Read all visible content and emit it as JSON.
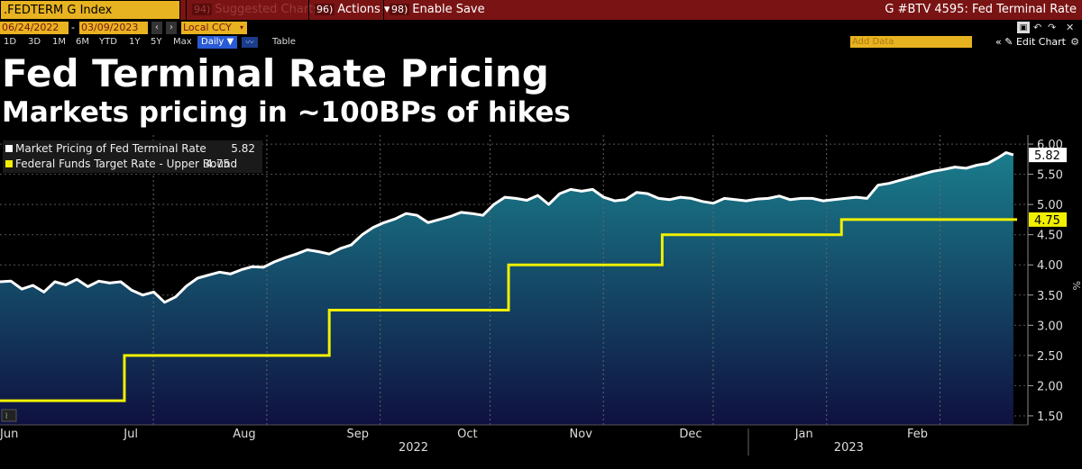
{
  "toolbar": {
    "ticker": ".FEDTERM G Index",
    "suggested_num": "94)",
    "suggested_label": "Suggested Charts",
    "actions_num": "96)",
    "actions_label": "Actions ▾",
    "enable_num": "98)",
    "enable_label": "Enable Save",
    "window_title": "G #BTV 4595: Fed Terminal Rate"
  },
  "dates": {
    "start": "06/24/2022",
    "dash": "-",
    "end": "03/09/2023",
    "currency": "Local CCY"
  },
  "periods": [
    "1D",
    "3D",
    "1M",
    "6M",
    "YTD",
    "1Y",
    "5Y",
    "Max"
  ],
  "frequency": "Daily ▼",
  "table_label": "Table",
  "add_data_placeholder": "Add Data",
  "edit_chart": "« ✎ Edit Chart",
  "headline": "Fed Terminal Rate Pricing",
  "subheadline": "Markets pricing in ~100BPs of hikes",
  "colors": {
    "white_series": "#ffffff",
    "yellow_series": "#f0f000",
    "fill_top": "#1a7d8c",
    "fill_bottom": "#0f1140",
    "accent": "#e8b320"
  },
  "legend": [
    {
      "label": "Market Pricing of Fed Terminal Rate",
      "value": "5.82"
    },
    {
      "label": "Federal Funds Target Rate - Upper Bound",
      "value": "4.75"
    }
  ],
  "chart_data": {
    "type": "line",
    "title": "Fed Terminal Rate Pricing",
    "ylabel": "%",
    "ylim": [
      1.35,
      6.15
    ],
    "yticks": [
      "6.00",
      "5.50",
      "5.00",
      "4.50",
      "4.00",
      "3.50",
      "3.00",
      "2.50",
      "2.00",
      "1.50"
    ],
    "ytick_values": [
      6.0,
      5.5,
      5.0,
      4.5,
      4.0,
      3.5,
      3.0,
      2.5,
      2.0,
      1.5
    ],
    "x_start": "2022-06-24",
    "x_end": "2023-03-09",
    "month_labels": [
      "Jun",
      "Jul",
      "Aug",
      "Sep",
      "Oct",
      "Nov",
      "Dec",
      "Jan",
      "Feb"
    ],
    "month_days": [
      0,
      37,
      68,
      99,
      129,
      160,
      190,
      221,
      252
    ],
    "year_labels": [
      "2022",
      "2023"
    ],
    "year_days": [
      113,
      232
    ],
    "series": [
      {
        "name": "Market Pricing of Fed Terminal Rate",
        "last_value": "5.82",
        "x": [
          0,
          3,
          6,
          9,
          12,
          15,
          18,
          21,
          24,
          27,
          30,
          33,
          36,
          39,
          42,
          45,
          48,
          51,
          54,
          57,
          60,
          63,
          66,
          69,
          72,
          75,
          78,
          81,
          84,
          87,
          90,
          93,
          96,
          99,
          102,
          105,
          108,
          111,
          114,
          117,
          120,
          123,
          126,
          129,
          132,
          135,
          138,
          141,
          144,
          147,
          150,
          153,
          156,
          159,
          162,
          165,
          168,
          171,
          174,
          177,
          180,
          183,
          186,
          189,
          192,
          195,
          198,
          201,
          204,
          207,
          210,
          213,
          216,
          219,
          222,
          225,
          228,
          231,
          234,
          237,
          240,
          243,
          246,
          249,
          252,
          255,
          258,
          261,
          264,
          267,
          270,
          273,
          275,
          277
        ],
        "values": [
          3.72,
          3.73,
          3.6,
          3.66,
          3.55,
          3.72,
          3.67,
          3.76,
          3.64,
          3.73,
          3.7,
          3.72,
          3.58,
          3.5,
          3.55,
          3.38,
          3.47,
          3.65,
          3.78,
          3.83,
          3.88,
          3.85,
          3.92,
          3.97,
          3.96,
          4.05,
          4.12,
          4.18,
          4.25,
          4.22,
          4.18,
          4.27,
          4.33,
          4.5,
          4.62,
          4.7,
          4.76,
          4.85,
          4.82,
          4.7,
          4.75,
          4.8,
          4.87,
          4.85,
          4.82,
          5.0,
          5.12,
          5.1,
          5.07,
          5.15,
          5.0,
          5.18,
          5.25,
          5.22,
          5.25,
          5.12,
          5.06,
          5.08,
          5.2,
          5.18,
          5.1,
          5.08,
          5.12,
          5.1,
          5.05,
          5.02,
          5.1,
          5.08,
          5.06,
          5.09,
          5.1,
          5.14,
          5.08,
          5.1,
          5.1,
          5.06,
          5.08,
          5.1,
          5.12,
          5.1,
          5.32,
          5.35,
          5.4,
          5.45,
          5.5,
          5.55,
          5.58,
          5.62,
          5.6,
          5.65,
          5.68,
          5.78,
          5.86,
          5.82
        ]
      },
      {
        "name": "Federal Funds Target Rate - Upper Bound",
        "last_value": "4.75",
        "steps": [
          {
            "day": 0,
            "value": 1.75
          },
          {
            "day": 34,
            "value": 2.5
          },
          {
            "day": 90,
            "value": 3.25
          },
          {
            "day": 139,
            "value": 4.0
          },
          {
            "day": 181,
            "value": 4.5
          },
          {
            "day": 230,
            "value": 4.75
          }
        ],
        "end_day": 278
      }
    ]
  }
}
